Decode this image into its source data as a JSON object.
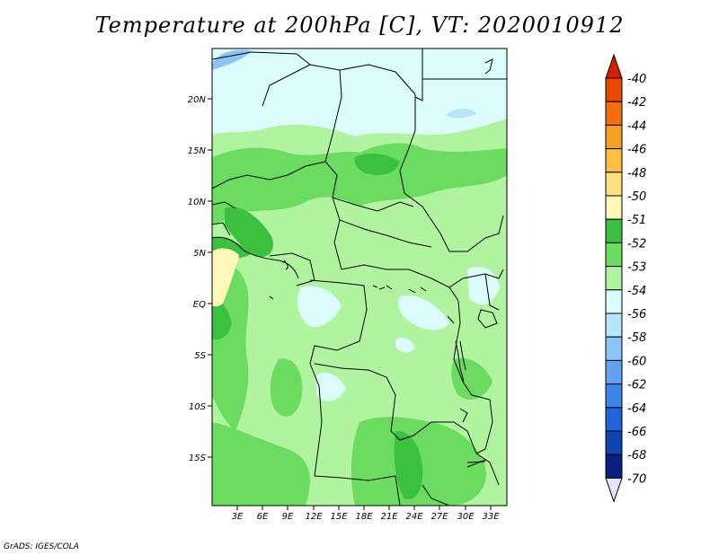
{
  "title": "Temperature at 200hPa [C], VT: 2020010912",
  "credit": "GrADS: IGES/COLA",
  "map": {
    "lat_labels": [
      "20N",
      "15N",
      "10N",
      "5N",
      "EQ",
      "5S",
      "10S",
      "15S"
    ],
    "lon_labels": [
      "3E",
      "6E",
      "9E",
      "12E",
      "15E",
      "18E",
      "21E",
      "24E",
      "27E",
      "30E",
      "33E"
    ]
  },
  "colorbar": {
    "labels": [
      "-40",
      "-42",
      "-44",
      "-46",
      "-48",
      "-50",
      "-51",
      "-52",
      "-53",
      "-54",
      "-56",
      "-58",
      "-60",
      "-62",
      "-64",
      "-66",
      "-68",
      "-70"
    ],
    "colors": [
      "#d42000",
      "#e84800",
      "#f07010",
      "#f8a020",
      "#fcc040",
      "#fce080",
      "#fcf8b8",
      "#3cc040",
      "#6cdc60",
      "#b0f4a0",
      "#dcfcfc",
      "#b8e4fc",
      "#8cc4f8",
      "#60a4f0",
      "#3c84e8",
      "#2064d8",
      "#1044b0",
      "#082080",
      "#e4e4fc"
    ]
  },
  "colors": {
    "light_green": "#b0f4a0",
    "medium_green": "#6cdc60",
    "dark_green": "#3cc040",
    "pale_cyan": "#dcfcfc",
    "light_blue": "#8cc4f8",
    "pale_yellow": "#fcf8b8"
  }
}
